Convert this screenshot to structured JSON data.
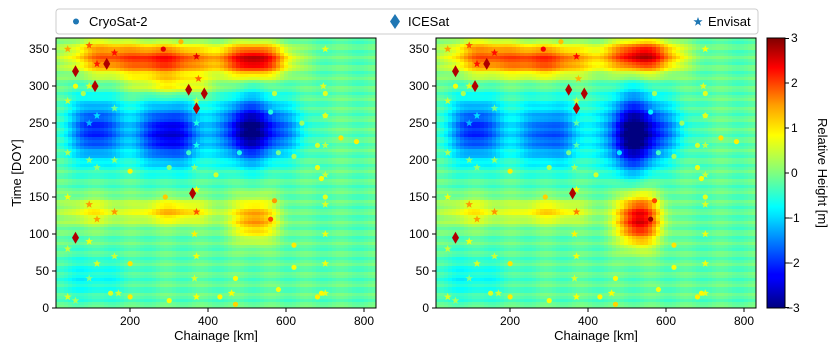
{
  "legend": {
    "items": [
      {
        "label": "CryoSat-2",
        "marker": "dot",
        "color": "#1f77b4"
      },
      {
        "label": "ICESat",
        "marker": "diamond",
        "color": "#1f77b4"
      },
      {
        "label": "Envisat",
        "marker": "star",
        "color": "#1f77b4"
      }
    ]
  },
  "colorbar": {
    "label": "Relative Height [m]",
    "ticks": [
      "3",
      "2",
      "1",
      "0",
      "−1",
      "−2",
      "−3"
    ],
    "range": [
      -3,
      3
    ],
    "colormap": "jet"
  },
  "chart_data": [
    {
      "type": "heatmap",
      "xlabel": "Chainage [km]",
      "ylabel": "Time [DOY]",
      "xlim": [
        10,
        830
      ],
      "ylim": [
        0,
        365
      ],
      "xticks": [
        "200",
        "400",
        "600",
        "800"
      ],
      "yticks": [
        "0",
        "50",
        "100",
        "150",
        "200",
        "250",
        "300",
        "350"
      ],
      "blobs": [
        {
          "x": 290,
          "y": 335,
          "v": 2.3,
          "wx": 130,
          "wy": 22
        },
        {
          "x": 520,
          "y": 335,
          "v": 2.8,
          "wx": 85,
          "wy": 22
        },
        {
          "x": 120,
          "y": 340,
          "v": 1.4,
          "wx": 90,
          "wy": 25
        },
        {
          "x": 310,
          "y": 300,
          "v": 1.0,
          "wx": 110,
          "wy": 14
        },
        {
          "x": 110,
          "y": 240,
          "v": -1.9,
          "wx": 70,
          "wy": 42
        },
        {
          "x": 300,
          "y": 235,
          "v": -2.3,
          "wx": 90,
          "wy": 42
        },
        {
          "x": 505,
          "y": 240,
          "v": -2.8,
          "wx": 70,
          "wy": 42
        },
        {
          "x": 600,
          "y": 240,
          "v": -0.9,
          "wx": 60,
          "wy": 35
        },
        {
          "x": 310,
          "y": 130,
          "v": 1.3,
          "wx": 110,
          "wy": 18
        },
        {
          "x": 520,
          "y": 120,
          "v": 1.6,
          "wx": 60,
          "wy": 30
        },
        {
          "x": 100,
          "y": 130,
          "v": 0.9,
          "wx": 80,
          "wy": 20
        },
        {
          "x": 100,
          "y": 40,
          "v": -0.5,
          "wx": 100,
          "wy": 30
        }
      ],
      "cryosat": [
        [
          330,
          360
        ],
        [
          285,
          350
        ],
        [
          60,
          300
        ],
        [
          80,
          290
        ],
        [
          570,
          290
        ],
        [
          700,
          290
        ],
        [
          560,
          265
        ],
        [
          700,
          260
        ],
        [
          640,
          250
        ],
        [
          740,
          230
        ],
        [
          780,
          225
        ],
        [
          680,
          220
        ],
        [
          350,
          210
        ],
        [
          480,
          210
        ],
        [
          580,
          210
        ],
        [
          620,
          205
        ],
        [
          680,
          190
        ],
        [
          200,
          185
        ],
        [
          300,
          190
        ],
        [
          420,
          180
        ],
        [
          690,
          175
        ],
        [
          700,
          150
        ],
        [
          570,
          145
        ],
        [
          290,
          150
        ],
        [
          560,
          120
        ],
        [
          620,
          85
        ],
        [
          200,
          60
        ],
        [
          620,
          55
        ],
        [
          470,
          40
        ],
        [
          580,
          25
        ],
        [
          690,
          20
        ],
        [
          680,
          15
        ],
        [
          300,
          10
        ],
        [
          150,
          20
        ],
        [
          200,
          15
        ],
        [
          430,
          15
        ],
        [
          470,
          5
        ]
      ],
      "icesat": [
        [
          60,
          95
        ],
        [
          60,
          320
        ],
        [
          110,
          300
        ],
        [
          350,
          295
        ],
        [
          390,
          290
        ],
        [
          370,
          270
        ],
        [
          360,
          155
        ],
        [
          140,
          330
        ]
      ],
      "envisat": [
        [
          40,
          350
        ],
        [
          40,
          280
        ],
        [
          40,
          210
        ],
        [
          40,
          150
        ],
        [
          40,
          80
        ],
        [
          40,
          15
        ],
        [
          95,
          355
        ],
        [
          95,
          300
        ],
        [
          95,
          250
        ],
        [
          95,
          200
        ],
        [
          95,
          140
        ],
        [
          95,
          90
        ],
        [
          95,
          40
        ],
        [
          115,
          330
        ],
        [
          115,
          260
        ],
        [
          115,
          190
        ],
        [
          115,
          120
        ],
        [
          115,
          60
        ],
        [
          160,
          345
        ],
        [
          160,
          270
        ],
        [
          160,
          200
        ],
        [
          160,
          130
        ],
        [
          160,
          70
        ],
        [
          170,
          20
        ],
        [
          370,
          340
        ],
        [
          375,
          310
        ],
        [
          370,
          280
        ],
        [
          370,
          250
        ],
        [
          370,
          220
        ],
        [
          365,
          190
        ],
        [
          370,
          160
        ],
        [
          370,
          130
        ],
        [
          365,
          100
        ],
        [
          370,
          70
        ],
        [
          365,
          40
        ],
        [
          370,
          15
        ],
        [
          700,
          350
        ],
        [
          695,
          300
        ],
        [
          700,
          260
        ],
        [
          700,
          220
        ],
        [
          700,
          180
        ],
        [
          700,
          140
        ],
        [
          700,
          100
        ],
        [
          700,
          60
        ],
        [
          700,
          20
        ],
        [
          460,
          20
        ],
        [
          60,
          10
        ]
      ]
    },
    {
      "type": "heatmap",
      "xlabel": "Chainage [km]",
      "ylabel": "",
      "xlim": [
        10,
        830
      ],
      "ylim": [
        0,
        365
      ],
      "xticks": [
        "200",
        "400",
        "600",
        "800"
      ],
      "yticks": [
        "0",
        "50",
        "100",
        "150",
        "200",
        "250",
        "300",
        "350"
      ],
      "blobs": [
        {
          "x": 290,
          "y": 335,
          "v": 2.1,
          "wx": 130,
          "wy": 22
        },
        {
          "x": 540,
          "y": 340,
          "v": 2.8,
          "wx": 90,
          "wy": 22
        },
        {
          "x": 120,
          "y": 340,
          "v": 1.5,
          "wx": 90,
          "wy": 25
        },
        {
          "x": 110,
          "y": 240,
          "v": -1.9,
          "wx": 70,
          "wy": 42
        },
        {
          "x": 300,
          "y": 235,
          "v": -1.6,
          "wx": 90,
          "wy": 42
        },
        {
          "x": 515,
          "y": 235,
          "v": -3.0,
          "wx": 65,
          "wy": 50
        },
        {
          "x": 600,
          "y": 240,
          "v": -0.9,
          "wx": 60,
          "wy": 35
        },
        {
          "x": 300,
          "y": 130,
          "v": 1.1,
          "wx": 110,
          "wy": 18
        },
        {
          "x": 530,
          "y": 120,
          "v": 2.7,
          "wx": 55,
          "wy": 35
        },
        {
          "x": 100,
          "y": 130,
          "v": 0.9,
          "wx": 80,
          "wy": 20
        },
        {
          "x": 100,
          "y": 40,
          "v": -0.5,
          "wx": 100,
          "wy": 30
        }
      ],
      "cryosat": [
        [
          330,
          360
        ],
        [
          285,
          350
        ],
        [
          60,
          300
        ],
        [
          80,
          290
        ],
        [
          570,
          290
        ],
        [
          700,
          290
        ],
        [
          560,
          265
        ],
        [
          700,
          260
        ],
        [
          640,
          250
        ],
        [
          740,
          230
        ],
        [
          780,
          225
        ],
        [
          680,
          220
        ],
        [
          350,
          210
        ],
        [
          480,
          210
        ],
        [
          580,
          210
        ],
        [
          620,
          205
        ],
        [
          680,
          190
        ],
        [
          200,
          185
        ],
        [
          300,
          190
        ],
        [
          420,
          180
        ],
        [
          690,
          175
        ],
        [
          700,
          150
        ],
        [
          570,
          145
        ],
        [
          290,
          150
        ],
        [
          560,
          120
        ],
        [
          620,
          85
        ],
        [
          200,
          60
        ],
        [
          620,
          55
        ],
        [
          470,
          40
        ],
        [
          580,
          25
        ],
        [
          690,
          20
        ],
        [
          680,
          15
        ],
        [
          300,
          10
        ],
        [
          150,
          20
        ],
        [
          200,
          15
        ],
        [
          430,
          15
        ],
        [
          470,
          5
        ]
      ],
      "icesat": [
        [
          60,
          95
        ],
        [
          60,
          320
        ],
        [
          110,
          300
        ],
        [
          350,
          295
        ],
        [
          390,
          290
        ],
        [
          370,
          270
        ],
        [
          360,
          155
        ],
        [
          140,
          330
        ]
      ],
      "envisat": [
        [
          40,
          350
        ],
        [
          40,
          280
        ],
        [
          40,
          210
        ],
        [
          40,
          150
        ],
        [
          40,
          80
        ],
        [
          40,
          15
        ],
        [
          95,
          355
        ],
        [
          95,
          300
        ],
        [
          95,
          250
        ],
        [
          95,
          200
        ],
        [
          95,
          140
        ],
        [
          95,
          90
        ],
        [
          95,
          40
        ],
        [
          115,
          330
        ],
        [
          115,
          260
        ],
        [
          115,
          190
        ],
        [
          115,
          120
        ],
        [
          115,
          60
        ],
        [
          160,
          345
        ],
        [
          160,
          270
        ],
        [
          160,
          200
        ],
        [
          160,
          130
        ],
        [
          160,
          70
        ],
        [
          170,
          20
        ],
        [
          370,
          340
        ],
        [
          375,
          310
        ],
        [
          370,
          280
        ],
        [
          370,
          250
        ],
        [
          370,
          220
        ],
        [
          365,
          190
        ],
        [
          370,
          160
        ],
        [
          370,
          130
        ],
        [
          365,
          100
        ],
        [
          370,
          70
        ],
        [
          365,
          40
        ],
        [
          370,
          15
        ],
        [
          700,
          350
        ],
        [
          695,
          300
        ],
        [
          700,
          260
        ],
        [
          700,
          220
        ],
        [
          700,
          180
        ],
        [
          700,
          140
        ],
        [
          700,
          100
        ],
        [
          700,
          60
        ],
        [
          700,
          20
        ],
        [
          460,
          20
        ],
        [
          60,
          10
        ]
      ]
    }
  ]
}
